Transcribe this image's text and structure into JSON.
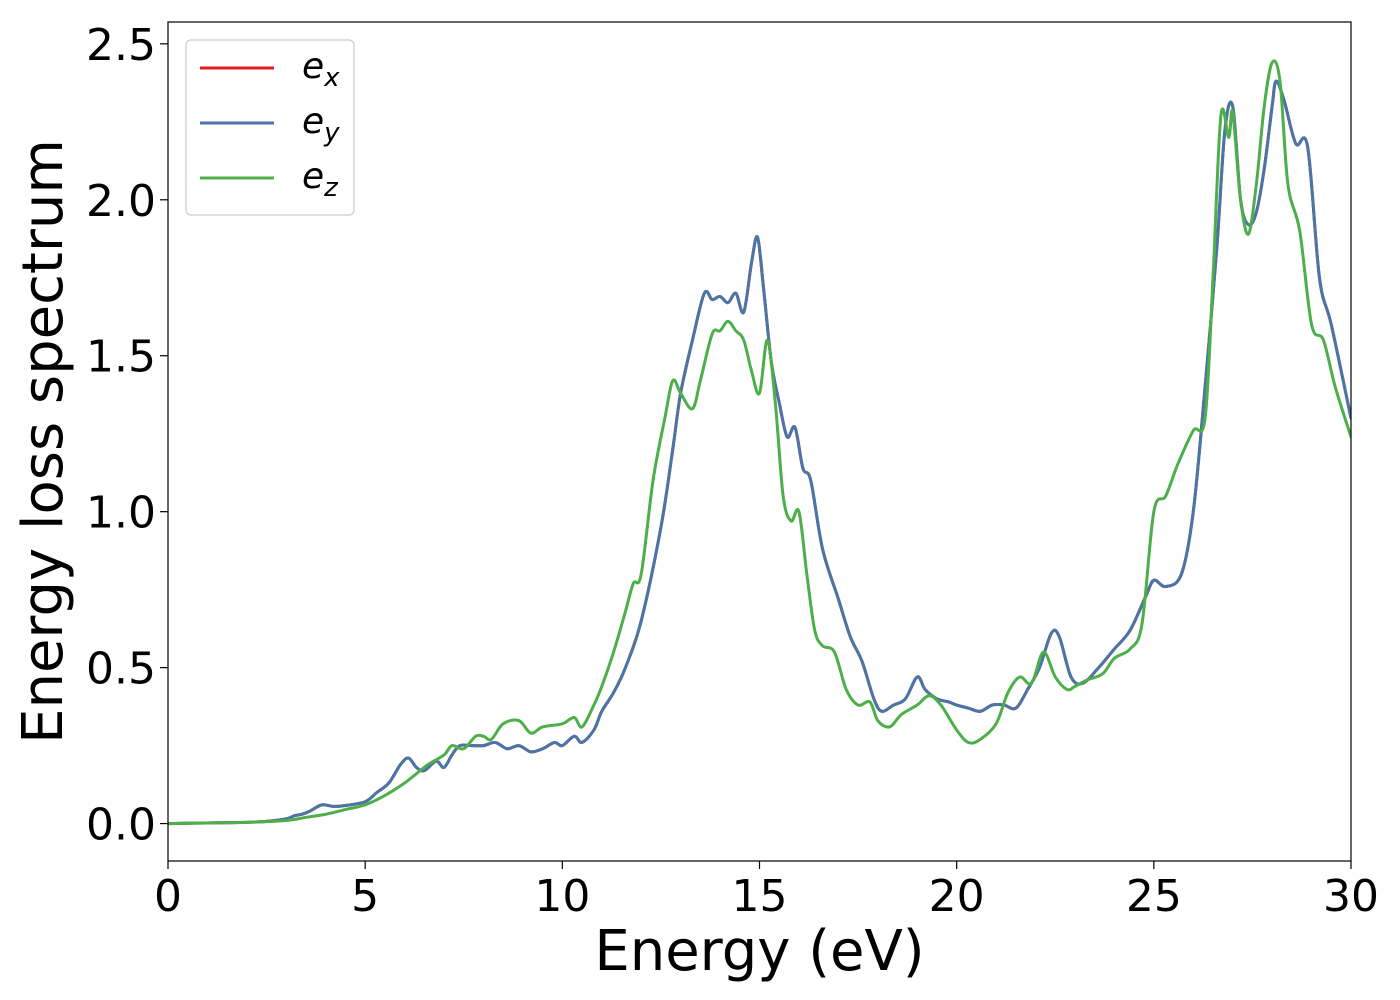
{
  "chart_data": {
    "type": "line",
    "title": "",
    "xlabel": "Energy (eV)",
    "ylabel": "Energy loss spectrum",
    "xlim": [
      0,
      30
    ],
    "ylim": [
      -0.12,
      2.57
    ],
    "xticks": [
      0,
      5,
      10,
      15,
      20,
      25,
      30
    ],
    "xtick_labels": [
      "0",
      "5",
      "10",
      "15",
      "20",
      "25",
      "30"
    ],
    "yticks": [
      0.0,
      0.5,
      1.0,
      1.5,
      2.0,
      2.5
    ],
    "ytick_labels": [
      "0.0",
      "0.5",
      "1.0",
      "1.5",
      "2.0",
      "2.5"
    ],
    "grid": false,
    "legend_position": "top-left",
    "series": [
      {
        "name": "e_x",
        "legend_base": "e",
        "legend_sub": "x",
        "color": "#e41a1c",
        "x": [
          0,
          1,
          2,
          2.5,
          3,
          3.2,
          3.4,
          3.6,
          3.9,
          4.2,
          4.5,
          5,
          5.3,
          5.6,
          5.9,
          6.1,
          6.3,
          6.5,
          6.8,
          7,
          7.2,
          7.4,
          7.7,
          8,
          8.3,
          8.6,
          8.9,
          9.2,
          9.5,
          9.8,
          10,
          10.3,
          10.5,
          10.8,
          11,
          11.3,
          11.6,
          12,
          12.5,
          12.8,
          13,
          13.3,
          13.6,
          13.8,
          14,
          14.2,
          14.4,
          14.6,
          14.8,
          14.95,
          15.1,
          15.3,
          15.5,
          15.7,
          15.9,
          16.1,
          16.3,
          16.6,
          17,
          17.3,
          17.6,
          17.9,
          18.1,
          18.4,
          18.7,
          19,
          19.2,
          19.5,
          19.8,
          20,
          20.3,
          20.6,
          20.9,
          21.2,
          21.5,
          21.8,
          22.1,
          22.4,
          22.6,
          22.9,
          23.2,
          23.6,
          24,
          24.4,
          24.8,
          25,
          25.3,
          25.7,
          26,
          26.3,
          26.6,
          26.8,
          27,
          27.2,
          27.4,
          27.6,
          27.8,
          28,
          28.1,
          28.3,
          28.6,
          28.9,
          29.2,
          29.5,
          30
        ],
        "y": [
          0,
          0.002,
          0.004,
          0.007,
          0.015,
          0.025,
          0.03,
          0.04,
          0.06,
          0.055,
          0.058,
          0.07,
          0.1,
          0.13,
          0.19,
          0.21,
          0.18,
          0.17,
          0.2,
          0.18,
          0.22,
          0.25,
          0.25,
          0.25,
          0.26,
          0.24,
          0.25,
          0.23,
          0.24,
          0.26,
          0.25,
          0.28,
          0.26,
          0.3,
          0.36,
          0.42,
          0.5,
          0.65,
          0.95,
          1.2,
          1.38,
          1.55,
          1.7,
          1.68,
          1.69,
          1.67,
          1.7,
          1.64,
          1.8,
          1.88,
          1.72,
          1.48,
          1.35,
          1.24,
          1.27,
          1.14,
          1.1,
          0.88,
          0.72,
          0.6,
          0.52,
          0.4,
          0.36,
          0.38,
          0.4,
          0.47,
          0.43,
          0.4,
          0.39,
          0.38,
          0.37,
          0.36,
          0.38,
          0.38,
          0.37,
          0.43,
          0.5,
          0.61,
          0.6,
          0.47,
          0.45,
          0.5,
          0.56,
          0.62,
          0.73,
          0.78,
          0.76,
          0.8,
          1.0,
          1.4,
          1.85,
          2.22,
          2.3,
          2.0,
          1.92,
          1.96,
          2.1,
          2.3,
          2.38,
          2.32,
          2.18,
          2.17,
          1.75,
          1.6,
          1.3
        ]
      },
      {
        "name": "e_y",
        "legend_base": "e",
        "legend_sub": "y",
        "color": "#4876a8",
        "x": [
          0,
          1,
          2,
          2.5,
          3,
          3.2,
          3.4,
          3.6,
          3.9,
          4.2,
          4.5,
          5,
          5.3,
          5.6,
          5.9,
          6.1,
          6.3,
          6.5,
          6.8,
          7,
          7.2,
          7.4,
          7.7,
          8,
          8.3,
          8.6,
          8.9,
          9.2,
          9.5,
          9.8,
          10,
          10.3,
          10.5,
          10.8,
          11,
          11.3,
          11.6,
          12,
          12.5,
          12.8,
          13,
          13.3,
          13.6,
          13.8,
          14,
          14.2,
          14.4,
          14.6,
          14.8,
          14.95,
          15.1,
          15.3,
          15.5,
          15.7,
          15.9,
          16.1,
          16.3,
          16.6,
          17,
          17.3,
          17.6,
          17.9,
          18.1,
          18.4,
          18.7,
          19,
          19.2,
          19.5,
          19.8,
          20,
          20.3,
          20.6,
          20.9,
          21.2,
          21.5,
          21.8,
          22.1,
          22.4,
          22.6,
          22.9,
          23.2,
          23.6,
          24,
          24.4,
          24.8,
          25,
          25.3,
          25.7,
          26,
          26.3,
          26.6,
          26.8,
          27,
          27.2,
          27.4,
          27.6,
          27.8,
          28,
          28.1,
          28.3,
          28.6,
          28.9,
          29.2,
          29.5,
          30
        ],
        "y": [
          0,
          0.002,
          0.004,
          0.007,
          0.015,
          0.025,
          0.03,
          0.04,
          0.06,
          0.055,
          0.058,
          0.07,
          0.1,
          0.13,
          0.19,
          0.21,
          0.18,
          0.17,
          0.2,
          0.18,
          0.22,
          0.25,
          0.25,
          0.25,
          0.26,
          0.24,
          0.25,
          0.23,
          0.24,
          0.26,
          0.25,
          0.28,
          0.26,
          0.3,
          0.36,
          0.42,
          0.5,
          0.65,
          0.95,
          1.2,
          1.38,
          1.55,
          1.7,
          1.68,
          1.69,
          1.67,
          1.7,
          1.64,
          1.8,
          1.88,
          1.72,
          1.48,
          1.35,
          1.24,
          1.27,
          1.14,
          1.1,
          0.88,
          0.72,
          0.6,
          0.52,
          0.4,
          0.36,
          0.38,
          0.4,
          0.47,
          0.43,
          0.4,
          0.39,
          0.38,
          0.37,
          0.36,
          0.38,
          0.38,
          0.37,
          0.43,
          0.5,
          0.61,
          0.6,
          0.47,
          0.45,
          0.5,
          0.56,
          0.62,
          0.73,
          0.78,
          0.76,
          0.8,
          1.0,
          1.4,
          1.85,
          2.22,
          2.3,
          2.0,
          1.92,
          1.96,
          2.1,
          2.3,
          2.38,
          2.32,
          2.18,
          2.17,
          1.75,
          1.6,
          1.3
        ]
      },
      {
        "name": "e_z",
        "legend_base": "e",
        "legend_sub": "z",
        "color": "#4daf4a",
        "x": [
          0,
          1,
          2,
          3,
          3.5,
          4,
          4.5,
          5,
          5.5,
          6,
          6.3,
          6.6,
          7,
          7.2,
          7.5,
          7.8,
          8,
          8.2,
          8.5,
          8.9,
          9.2,
          9.5,
          10,
          10.3,
          10.5,
          10.8,
          11,
          11.3,
          11.6,
          11.8,
          12,
          12.3,
          12.6,
          12.8,
          13,
          13.3,
          13.5,
          13.8,
          14,
          14.2,
          14.4,
          14.6,
          14.8,
          15,
          15.2,
          15.4,
          15.6,
          15.8,
          16,
          16.2,
          16.4,
          16.6,
          16.9,
          17.2,
          17.5,
          17.8,
          18,
          18.3,
          18.6,
          19,
          19.3,
          19.6,
          20,
          20.3,
          20.6,
          21,
          21.3,
          21.6,
          21.9,
          22.2,
          22.5,
          22.8,
          23,
          23.3,
          23.7,
          24,
          24.4,
          24.7,
          25,
          25.3,
          25.6,
          26,
          26.3,
          26.5,
          26.7,
          26.9,
          27,
          27.2,
          27.4,
          27.6,
          27.8,
          28,
          28.2,
          28.4,
          28.7,
          29,
          29.3,
          29.6,
          30
        ],
        "y": [
          0,
          0.002,
          0.004,
          0.01,
          0.02,
          0.03,
          0.045,
          0.06,
          0.09,
          0.13,
          0.16,
          0.19,
          0.22,
          0.25,
          0.24,
          0.28,
          0.28,
          0.27,
          0.32,
          0.33,
          0.29,
          0.31,
          0.32,
          0.34,
          0.31,
          0.38,
          0.44,
          0.55,
          0.68,
          0.77,
          0.8,
          1.1,
          1.3,
          1.42,
          1.38,
          1.33,
          1.42,
          1.57,
          1.58,
          1.61,
          1.58,
          1.55,
          1.45,
          1.38,
          1.55,
          1.35,
          1.05,
          0.97,
          1.0,
          0.8,
          0.62,
          0.57,
          0.55,
          0.43,
          0.38,
          0.39,
          0.33,
          0.31,
          0.35,
          0.38,
          0.41,
          0.38,
          0.3,
          0.26,
          0.27,
          0.32,
          0.42,
          0.47,
          0.45,
          0.55,
          0.47,
          0.43,
          0.44,
          0.46,
          0.48,
          0.53,
          0.56,
          0.64,
          1.0,
          1.05,
          1.15,
          1.26,
          1.3,
          1.75,
          2.27,
          2.2,
          2.28,
          2.0,
          1.89,
          2.05,
          2.3,
          2.44,
          2.38,
          2.05,
          1.9,
          1.6,
          1.55,
          1.4,
          1.24
        ]
      }
    ]
  }
}
